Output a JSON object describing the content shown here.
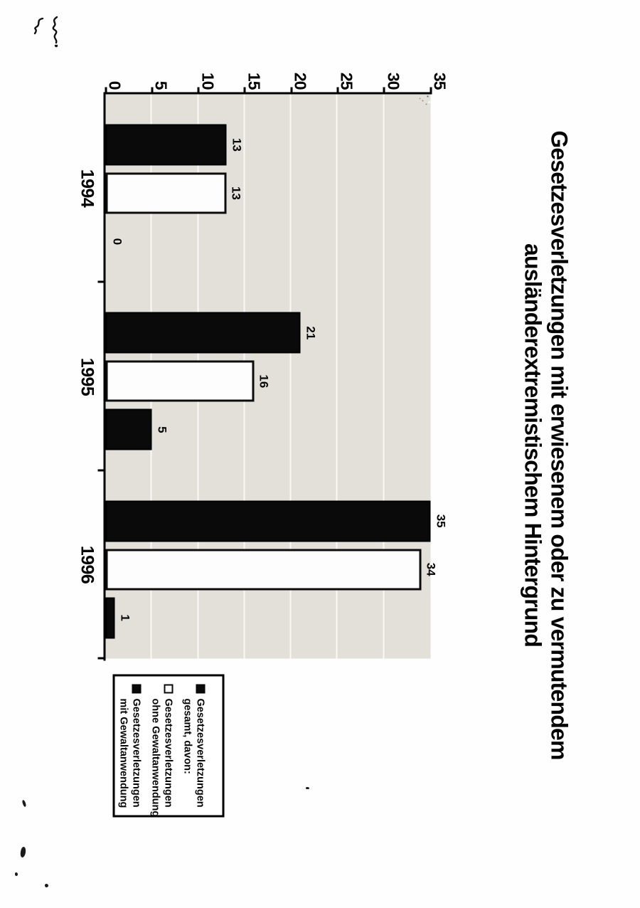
{
  "page_annotations": {
    "top_left_handwriting": "illegible handwritten mark (two pen squiggles, page number)"
  },
  "chart_data": {
    "type": "bar",
    "title": "Gesetzesverletzungen mit erwiesenem oder zu vermutendem ausländerextremistischem Hintergrund",
    "title_lines": [
      "Gesetzesverletzungen mit erwiesenem oder zu vermutendem",
      "ausländerextremistischem Hintergrund"
    ],
    "categories": [
      "1994",
      "1995",
      "1996"
    ],
    "series": [
      {
        "name": "Gesetzesverletzungen gesamt, davon:",
        "fill": "black",
        "color": "#000000",
        "values": [
          13,
          21,
          35
        ]
      },
      {
        "name": "Gesetzesverletzungen ohne Gewaltanwendung",
        "fill": "white",
        "color": "#ffffff",
        "values": [
          13,
          16,
          34
        ]
      },
      {
        "name": "Gesetzesverletzungen mit Gewaltanwendung",
        "fill": "black",
        "color": "#000000",
        "values": [
          0,
          5,
          1
        ]
      }
    ],
    "value_axis": {
      "min": 0,
      "max": 35,
      "step": 5,
      "ticks": [
        "0",
        "5",
        "10",
        "15",
        "20",
        "25",
        "30",
        "35"
      ]
    },
    "grid": true,
    "legend_position": "right",
    "plot_background": "#e3e0da",
    "orientation": "page rotated 90 degrees clockwise"
  },
  "legend": {
    "items": [
      {
        "marker": "black",
        "line1": "Gesetzesverletzungen",
        "line2": "gesamt, davon:"
      },
      {
        "marker": "white",
        "line1": "Gesetzesverletzungen",
        "line2": "ohne Gewaltanwendung"
      },
      {
        "marker": "black",
        "line1": "Gesetzesverletzungen",
        "line2": "mit Gewaltanwendung"
      }
    ]
  }
}
